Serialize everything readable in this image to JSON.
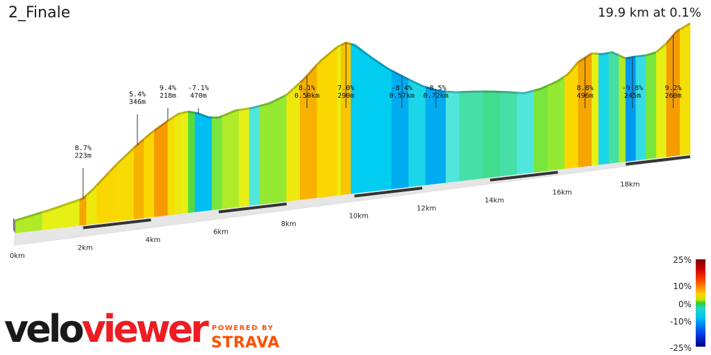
{
  "header": {
    "title": "2_Finale",
    "summary": "19.9 km at 0.1%"
  },
  "chart_data": {
    "type": "area",
    "x_unit": "km",
    "xlim": [
      0,
      19.9
    ],
    "x_ticks": [
      0,
      2,
      4,
      6,
      8,
      10,
      12,
      14,
      16,
      18
    ],
    "x_tick_labels": [
      "0km",
      "2km",
      "4km",
      "6km",
      "8km",
      "10km",
      "12km",
      "14km",
      "16km",
      "18km"
    ],
    "elevation_profile": {
      "x": [
        0,
        0.5,
        1.0,
        1.5,
        2.0,
        2.3,
        2.6,
        3.0,
        3.5,
        4.0,
        4.5,
        4.8,
        5.1,
        5.4,
        5.7,
        6.0,
        6.5,
        7.0,
        7.5,
        8.0,
        8.5,
        9.0,
        9.5,
        9.75,
        10.0,
        10.5,
        11.0,
        11.5,
        12.0,
        12.5,
        13.0,
        13.5,
        14.0,
        14.5,
        15.0,
        15.5,
        16.0,
        16.3,
        16.6,
        17.0,
        17.3,
        17.6,
        18.0,
        18.3,
        18.6,
        18.9,
        19.2,
        19.5,
        19.9
      ],
      "elevation": [
        0,
        5,
        10,
        16,
        22,
        35,
        50,
        70,
        92,
        112,
        128,
        137,
        139,
        134,
        126,
        124,
        132,
        133,
        137,
        147,
        168,
        194,
        213,
        218,
        213,
        190,
        169,
        152,
        136,
        125,
        120,
        118,
        115,
        111,
        106,
        110,
        119,
        128,
        145,
        156,
        153,
        154,
        142,
        143,
        143,
        146,
        158,
        175,
        185
      ]
    },
    "segments": [
      {
        "from": 0.0,
        "to": 0.8,
        "grade": 2
      },
      {
        "from": 0.8,
        "to": 1.9,
        "grade": 3
      },
      {
        "from": 1.9,
        "to": 2.1,
        "grade": 8.7
      },
      {
        "from": 2.1,
        "to": 2.4,
        "grade": 4
      },
      {
        "from": 2.4,
        "to": 2.8,
        "grade": 6
      },
      {
        "from": 2.8,
        "to": 3.0,
        "grade": 6
      },
      {
        "from": 3.0,
        "to": 3.5,
        "grade": 5.4
      },
      {
        "from": 3.5,
        "to": 3.8,
        "grade": 8
      },
      {
        "from": 3.8,
        "to": 4.1,
        "grade": 6
      },
      {
        "from": 4.1,
        "to": 4.5,
        "grade": 9.4
      },
      {
        "from": 4.5,
        "to": 4.7,
        "grade": 5
      },
      {
        "from": 4.7,
        "to": 4.9,
        "grade": 4
      },
      {
        "from": 4.9,
        "to": 5.1,
        "grade": 3
      },
      {
        "from": 5.1,
        "to": 5.3,
        "grade": 0.5
      },
      {
        "from": 5.3,
        "to": 5.8,
        "grade": -7.1
      },
      {
        "from": 5.8,
        "to": 6.1,
        "grade": 1
      },
      {
        "from": 6.1,
        "to": 6.6,
        "grade": 2
      },
      {
        "from": 6.6,
        "to": 6.9,
        "grade": 3
      },
      {
        "from": 6.9,
        "to": 7.2,
        "grade": -3
      },
      {
        "from": 7.2,
        "to": 8.0,
        "grade": 1.5
      },
      {
        "from": 8.0,
        "to": 8.2,
        "grade": 4
      },
      {
        "from": 8.2,
        "to": 8.4,
        "grade": 4
      },
      {
        "from": 8.4,
        "to": 8.9,
        "grade": 8.1
      },
      {
        "from": 8.9,
        "to": 9.5,
        "grade": 6
      },
      {
        "from": 9.5,
        "to": 9.6,
        "grade": 3
      },
      {
        "from": 9.6,
        "to": 9.9,
        "grade": 7.0
      },
      {
        "from": 9.9,
        "to": 10.6,
        "grade": -6
      },
      {
        "from": 10.6,
        "to": 11.1,
        "grade": -6
      },
      {
        "from": 11.1,
        "to": 11.6,
        "grade": -8.4
      },
      {
        "from": 11.6,
        "to": 12.1,
        "grade": -5
      },
      {
        "from": 12.1,
        "to": 12.7,
        "grade": -8.5
      },
      {
        "from": 12.7,
        "to": 13.1,
        "grade": -3
      },
      {
        "from": 13.1,
        "to": 13.8,
        "grade": -2
      },
      {
        "from": 13.8,
        "to": 14.3,
        "grade": -1.5
      },
      {
        "from": 14.3,
        "to": 14.8,
        "grade": -2
      },
      {
        "from": 14.8,
        "to": 15.3,
        "grade": -3
      },
      {
        "from": 15.3,
        "to": 15.7,
        "grade": 1
      },
      {
        "from": 15.7,
        "to": 16.2,
        "grade": 1.5
      },
      {
        "from": 16.2,
        "to": 16.6,
        "grade": 6
      },
      {
        "from": 16.6,
        "to": 17.0,
        "grade": 8.8
      },
      {
        "from": 17.0,
        "to": 17.2,
        "grade": 3
      },
      {
        "from": 17.2,
        "to": 17.5,
        "grade": -5
      },
      {
        "from": 17.5,
        "to": 17.8,
        "grade": -2
      },
      {
        "from": 17.8,
        "to": 18.0,
        "grade": 2
      },
      {
        "from": 18.0,
        "to": 18.3,
        "grade": -9.8
      },
      {
        "from": 18.3,
        "to": 18.6,
        "grade": -4
      },
      {
        "from": 18.6,
        "to": 18.9,
        "grade": 1
      },
      {
        "from": 18.9,
        "to": 19.2,
        "grade": 3
      },
      {
        "from": 19.2,
        "to": 19.6,
        "grade": 9.2
      },
      {
        "from": 19.6,
        "to": 19.9,
        "grade": 5
      }
    ],
    "annotations": [
      {
        "km": 2.0,
        "grade": "8.7%",
        "length": "223m"
      },
      {
        "km": 3.6,
        "grade": "5.4%",
        "length": "346m"
      },
      {
        "km": 4.5,
        "grade": "9.4%",
        "length": "218m"
      },
      {
        "km": 5.4,
        "grade": "-7.1%",
        "length": "470m"
      },
      {
        "km": 8.6,
        "grade": "8.1%",
        "length": "0.50km"
      },
      {
        "km": 9.75,
        "grade": "7.0%",
        "length": "290m"
      },
      {
        "km": 11.4,
        "grade": "-8.4%",
        "length": "0.57km"
      },
      {
        "km": 12.4,
        "grade": "-8.5%",
        "length": "0.72km"
      },
      {
        "km": 16.8,
        "grade": "8.8%",
        "length": "496m"
      },
      {
        "km": 18.2,
        "grade": "-9.8%",
        "length": "245m"
      },
      {
        "km": 19.4,
        "grade": "9.2%",
        "length": "260m"
      }
    ],
    "colorscale": {
      "labels": [
        "25%",
        "10%",
        "0%",
        "-10%",
        "-25%"
      ],
      "values": [
        25,
        10,
        0,
        -10,
        -25
      ]
    }
  },
  "branding": {
    "logo_left": "velo",
    "logo_right": "viewer",
    "powered_by": "POWERED BY",
    "partner": "STRAVA"
  }
}
